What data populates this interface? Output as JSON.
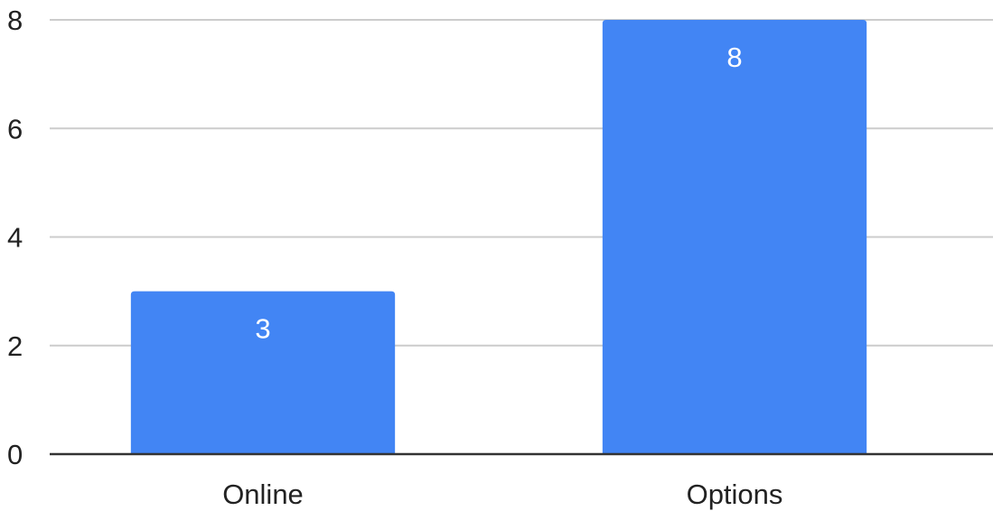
{
  "chart_data": {
    "type": "bar",
    "categories": [
      "Online",
      "Options"
    ],
    "values": [
      3,
      8
    ],
    "data_labels": [
      "3",
      "8"
    ],
    "title": "",
    "xlabel": "",
    "ylabel": "",
    "ylim": [
      0,
      8
    ],
    "y_ticks": [
      0,
      2,
      4,
      6,
      8
    ],
    "y_tick_labels": [
      "0",
      "2",
      "4",
      "6",
      "8"
    ],
    "grid": true,
    "legend": "none",
    "colors": {
      "bar": "#4285f4",
      "grid": "#cccccc",
      "baseline": "#333333",
      "text": "#222222",
      "data_label": "#ffffff"
    }
  }
}
